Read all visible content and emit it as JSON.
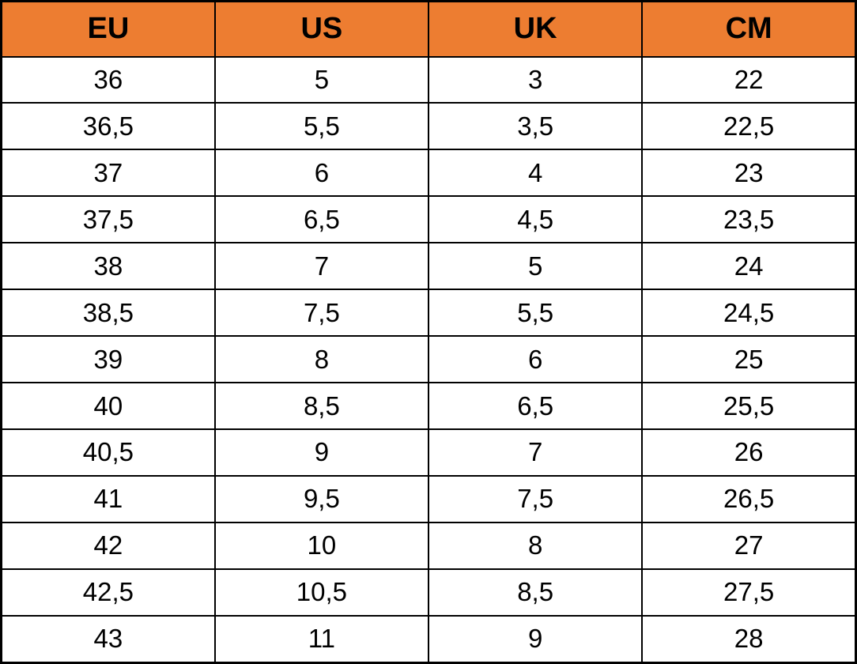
{
  "chart_data": {
    "type": "table",
    "columns": [
      "EU",
      "US",
      "UK",
      "CM"
    ],
    "rows": [
      [
        "36",
        "5",
        "3",
        "22"
      ],
      [
        "36,5",
        "5,5",
        "3,5",
        "22,5"
      ],
      [
        "37",
        "6",
        "4",
        "23"
      ],
      [
        "37,5",
        "6,5",
        "4,5",
        "23,5"
      ],
      [
        "38",
        "7",
        "5",
        "24"
      ],
      [
        "38,5",
        "7,5",
        "5,5",
        "24,5"
      ],
      [
        "39",
        "8",
        "6",
        "25"
      ],
      [
        "40",
        "8,5",
        "6,5",
        "25,5"
      ],
      [
        "40,5",
        "9",
        "7",
        "26"
      ],
      [
        "41",
        "9,5",
        "7,5",
        "26,5"
      ],
      [
        "42",
        "10",
        "8",
        "27"
      ],
      [
        "42,5",
        "10,5",
        "8,5",
        "27,5"
      ],
      [
        "43",
        "11",
        "9",
        "28"
      ]
    ]
  },
  "colors": {
    "header_bg": "#ED7D31",
    "border": "#000000",
    "cell_bg": "#FFFFFF",
    "text": "#000000"
  }
}
